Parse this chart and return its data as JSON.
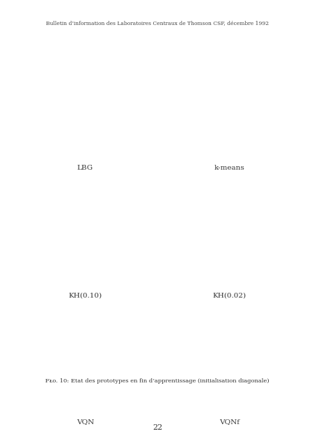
{
  "header": "Bulletin d’information des Laboratoires Centraux de Thomson CSF, décembre 1992",
  "caption": "Fᴌᴏ. 10: Etat des prototypes en fin d’apprentissage (initialisation diagonale)",
  "page_number": "22",
  "panel_labels": [
    "LBG",
    "k-means",
    "KH(0.10)",
    "KH(0.02)",
    "VQN",
    "VQNf"
  ],
  "background_color": "#ffffff",
  "panel_bg": "#000000",
  "figsize": [
    4.52,
    6.4
  ],
  "dpi": 100
}
